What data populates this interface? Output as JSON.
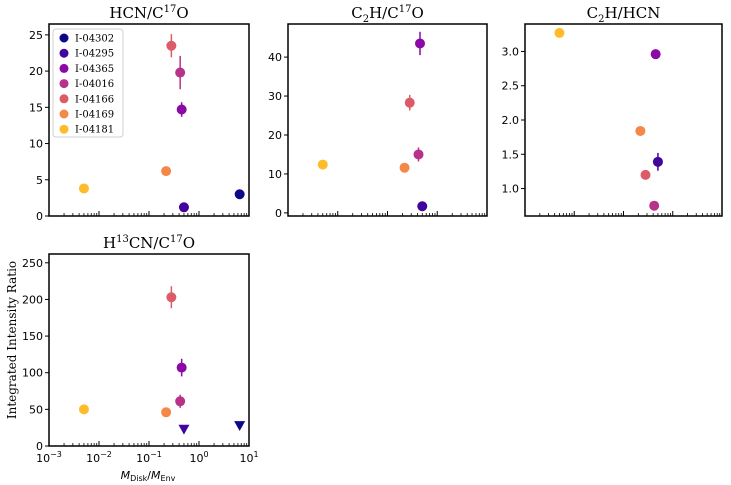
{
  "figure": {
    "ylabel": "Integrated Intensity Ratio",
    "xlabel_main": "M",
    "xlabel_num_sub": "Disk",
    "xlabel_sep": "/",
    "xlabel_den_sub": "Env"
  },
  "legend": [
    {
      "label": "I-04302",
      "color": "#0d0887"
    },
    {
      "label": "I-04295",
      "color": "#41049d"
    },
    {
      "label": "I-04365",
      "color": "#8b0aa5"
    },
    {
      "label": "I-04016",
      "color": "#b83289"
    },
    {
      "label": "I-04166",
      "color": "#db5c68"
    },
    {
      "label": "I-04169",
      "color": "#f48849"
    },
    {
      "label": "I-04181",
      "color": "#febc2a"
    }
  ],
  "chart_data": [
    {
      "type": "scatter",
      "title_parts": [
        "HCN/C",
        "17",
        "O"
      ],
      "xscale": "log",
      "xlim": [
        0.001,
        10
      ],
      "ylim": [
        0,
        26.5
      ],
      "yticks": [
        "0",
        "5",
        "10",
        "15",
        "20",
        "25"
      ],
      "points": [
        {
          "source": "I-04302",
          "x": 6.5,
          "y": 3.0,
          "err": 0,
          "marker": "circle"
        },
        {
          "source": "I-04295",
          "x": 0.5,
          "y": 1.2,
          "err": 0,
          "marker": "circle"
        },
        {
          "source": "I-04365",
          "x": 0.45,
          "y": 14.7,
          "err": 1.0,
          "marker": "circle"
        },
        {
          "source": "I-04016",
          "x": 0.42,
          "y": 19.8,
          "err": 2.3,
          "marker": "circle"
        },
        {
          "source": "I-04166",
          "x": 0.28,
          "y": 23.5,
          "err": 1.6,
          "marker": "circle"
        },
        {
          "source": "I-04169",
          "x": 0.22,
          "y": 6.2,
          "err": 0,
          "marker": "circle"
        },
        {
          "source": "I-04181",
          "x": 0.005,
          "y": 3.8,
          "err": 0,
          "marker": "circle"
        }
      ]
    },
    {
      "type": "scatter",
      "title_parts": [
        "C",
        "2",
        "H/C",
        "17",
        "O"
      ],
      "xscale": "log",
      "xlim": [
        0.001,
        10
      ],
      "ylim": [
        -0.8,
        48.5
      ],
      "yticks": [
        "0",
        "10",
        "20",
        "30",
        "40"
      ],
      "points": [
        {
          "source": "I-04295",
          "x": 0.5,
          "y": 1.7,
          "err": 0,
          "marker": "circle"
        },
        {
          "source": "I-04365",
          "x": 0.45,
          "y": 43.5,
          "err": 3.0,
          "marker": "circle"
        },
        {
          "source": "I-04016",
          "x": 0.42,
          "y": 15.0,
          "err": 1.8,
          "marker": "circle"
        },
        {
          "source": "I-04166",
          "x": 0.28,
          "y": 28.3,
          "err": 2.0,
          "marker": "circle"
        },
        {
          "source": "I-04169",
          "x": 0.22,
          "y": 11.6,
          "err": 0,
          "marker": "circle"
        },
        {
          "source": "I-04181",
          "x": 0.005,
          "y": 12.4,
          "err": 0,
          "marker": "circle"
        }
      ]
    },
    {
      "type": "scatter",
      "title_parts": [
        "C",
        "2",
        "H/HCN"
      ],
      "xscale": "log",
      "xlim": [
        0.001,
        10
      ],
      "ylim": [
        0.6,
        3.4
      ],
      "yticks": [
        "1.0",
        "1.5",
        "2.0",
        "2.5",
        "3.0"
      ],
      "points": [
        {
          "source": "I-04295",
          "x": 0.5,
          "y": 1.39,
          "err": 0.13,
          "marker": "circle"
        },
        {
          "source": "I-04365",
          "x": 0.45,
          "y": 2.96,
          "err": 0,
          "marker": "circle"
        },
        {
          "source": "I-04016",
          "x": 0.42,
          "y": 0.75,
          "err": 0,
          "marker": "circle"
        },
        {
          "source": "I-04166",
          "x": 0.28,
          "y": 1.2,
          "err": 0,
          "marker": "circle"
        },
        {
          "source": "I-04169",
          "x": 0.22,
          "y": 1.84,
          "err": 0,
          "marker": "circle"
        },
        {
          "source": "I-04181",
          "x": 0.005,
          "y": 3.27,
          "err": 0,
          "marker": "circle"
        }
      ]
    },
    {
      "type": "scatter",
      "title_parts": [
        "H",
        "13",
        "CN/C",
        "17",
        "O"
      ],
      "xscale": "log",
      "xlim": [
        0.001,
        10
      ],
      "ylim": [
        0,
        262
      ],
      "yticks": [
        "0",
        "50",
        "100",
        "150",
        "200",
        "250"
      ],
      "xticks": [
        {
          "base": "10",
          "exp": "−3"
        },
        {
          "base": "10",
          "exp": "−2"
        },
        {
          "base": "10",
          "exp": "−1"
        },
        {
          "base": "10",
          "exp": "0"
        },
        {
          "base": "10",
          "exp": "1"
        }
      ],
      "points": [
        {
          "source": "I-04302",
          "x": 6.5,
          "y": 28,
          "err": 0,
          "marker": "triangle-down"
        },
        {
          "source": "I-04295",
          "x": 0.5,
          "y": 23,
          "err": 0,
          "marker": "triangle-down"
        },
        {
          "source": "I-04365",
          "x": 0.45,
          "y": 107,
          "err": 12,
          "marker": "circle"
        },
        {
          "source": "I-04016",
          "x": 0.42,
          "y": 61,
          "err": 9,
          "marker": "circle"
        },
        {
          "source": "I-04166",
          "x": 0.28,
          "y": 203,
          "err": 15,
          "marker": "circle"
        },
        {
          "source": "I-04169",
          "x": 0.22,
          "y": 46,
          "err": 0,
          "marker": "circle"
        },
        {
          "source": "I-04181",
          "x": 0.005,
          "y": 50,
          "err": 0,
          "marker": "circle"
        }
      ]
    }
  ]
}
